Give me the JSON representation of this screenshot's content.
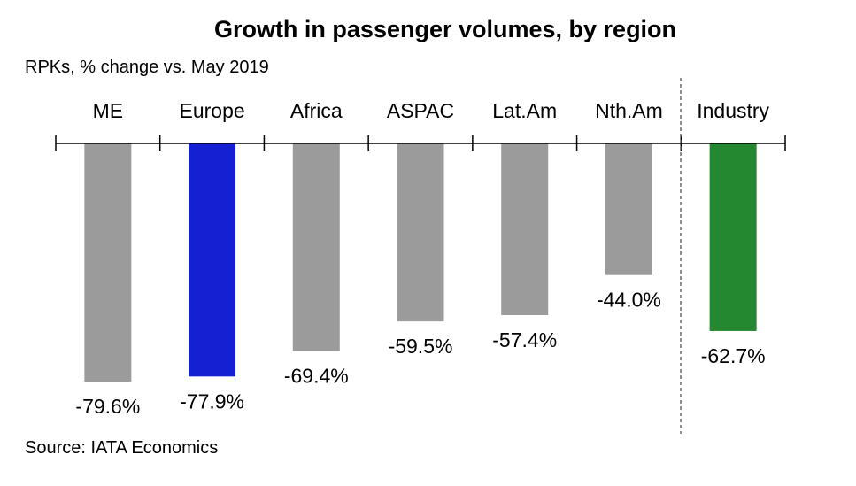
{
  "chart_data": {
    "type": "bar",
    "title": "Growth in passenger volumes, by region",
    "subtitle": "RPKs, % change vs. May 2019",
    "source": "Source: IATA Economics",
    "xlabel": "",
    "ylabel": "RPKs, % change vs. May 2019",
    "categories": [
      "ME",
      "Europe",
      "Africa",
      "ASPAC",
      "Lat.Am",
      "Nth.Am",
      "Industry"
    ],
    "values": [
      -79.6,
      -77.9,
      -69.4,
      -59.5,
      -57.4,
      -44.0,
      -62.7
    ],
    "data_labels": [
      "-79.6%",
      "-77.9%",
      "-69.4%",
      "-59.5%",
      "-57.4%",
      "-44.0%",
      "-62.7%"
    ],
    "colors": [
      "#9b9b9b",
      "#1420d2",
      "#9b9b9b",
      "#9b9b9b",
      "#9b9b9b",
      "#9b9b9b",
      "#23882f"
    ],
    "ylim": [
      -100,
      0
    ],
    "grid": false,
    "legend": "none"
  }
}
